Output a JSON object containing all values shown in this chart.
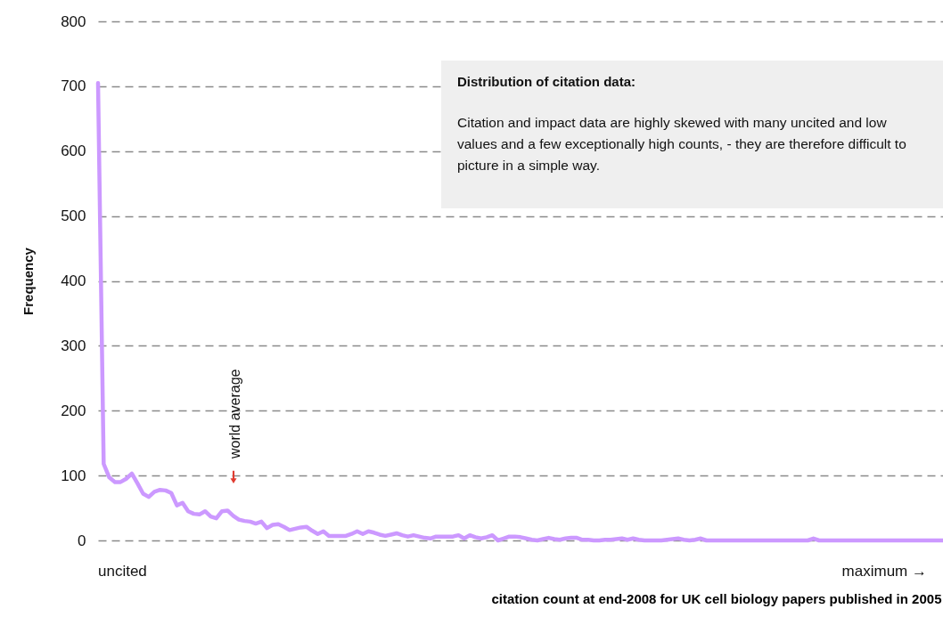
{
  "chart_data": {
    "type": "line",
    "xlabel": "citation count at end-2008 for UK cell biology papers published in 2005",
    "ylabel": "Frequency",
    "categories": [
      null,
      null,
      null,
      null,
      null,
      null,
      null,
      null,
      null,
      null,
      null,
      null,
      null,
      null,
      null,
      null,
      null,
      null,
      null,
      null,
      null,
      null,
      null,
      null,
      null,
      null,
      null,
      null,
      null,
      null,
      null,
      null,
      null,
      null,
      null,
      null,
      null,
      null,
      null,
      null,
      null,
      null,
      null,
      null,
      null,
      null,
      null,
      null,
      null,
      null,
      null,
      null,
      null,
      null,
      null,
      null,
      null,
      null,
      null,
      null,
      null,
      null,
      null,
      null,
      null,
      null,
      null,
      null,
      null,
      null,
      null,
      null,
      null,
      null,
      null,
      null,
      null,
      null,
      null,
      null,
      null,
      null,
      null,
      null,
      null,
      null,
      null,
      null,
      null,
      null,
      null,
      null,
      null,
      null,
      null,
      null,
      null,
      null,
      null,
      null,
      null,
      null,
      null,
      null,
      null,
      null,
      null,
      null,
      null,
      null,
      null,
      null,
      null,
      null,
      null,
      null,
      null,
      null,
      null,
      null,
      null,
      null,
      null,
      null,
      null,
      null,
      null,
      null,
      null,
      null,
      null,
      null,
      null,
      null,
      null,
      null,
      null,
      null,
      null,
      null,
      null,
      null,
      null,
      null,
      null,
      null,
      null,
      null,
      null,
      null,
      null
    ],
    "series": [
      {
        "color": "#cc99ff",
        "values": [
          705,
          118,
          97,
          90,
          90,
          95,
          103,
          88,
          72,
          67,
          75,
          78,
          77,
          73,
          54,
          58,
          45,
          41,
          40,
          45,
          37,
          34,
          45,
          46,
          38,
          32,
          30,
          29,
          26,
          29,
          19,
          24,
          25,
          21,
          16,
          18,
          20,
          21,
          15,
          10,
          14,
          7,
          7,
          7,
          7,
          10,
          14,
          10,
          14,
          12,
          9,
          7,
          9,
          11,
          8,
          6,
          8,
          6,
          4,
          3,
          6,
          6,
          6,
          6,
          8,
          3,
          8,
          5,
          3,
          5,
          8,
          0,
          3,
          6,
          6,
          5,
          3,
          1,
          0,
          2,
          4,
          2,
          1,
          3,
          4,
          4,
          1,
          1,
          0,
          0,
          1,
          1,
          2,
          3,
          1,
          3,
          1,
          0,
          0,
          0,
          0,
          1,
          2,
          3,
          1,
          0,
          1,
          3,
          0,
          0,
          0,
          0,
          0,
          0,
          0,
          0,
          0,
          0,
          0,
          0,
          0,
          0,
          0,
          0,
          0,
          0,
          0,
          3,
          0,
          0,
          0,
          0,
          0,
          0,
          0,
          0,
          0,
          0,
          0,
          0,
          0,
          0,
          0,
          0,
          0,
          0,
          0,
          0,
          0,
          0,
          0
        ]
      }
    ],
    "ylim": [
      0,
      800
    ],
    "yticks": [
      0,
      100,
      200,
      300,
      400,
      500,
      600,
      700,
      800
    ],
    "grid": "y",
    "tick_labels": "y",
    "line_style": "solid",
    "marker": "none",
    "annotations": [
      "uncited",
      "maximum →",
      "world average",
      "Distribution of citation data:",
      "Citation and impact data are highly skewed with many uncited and low values and a few exceptionally high counts, -  they are therefore difficult to picture in a simple way."
    ]
  }
}
